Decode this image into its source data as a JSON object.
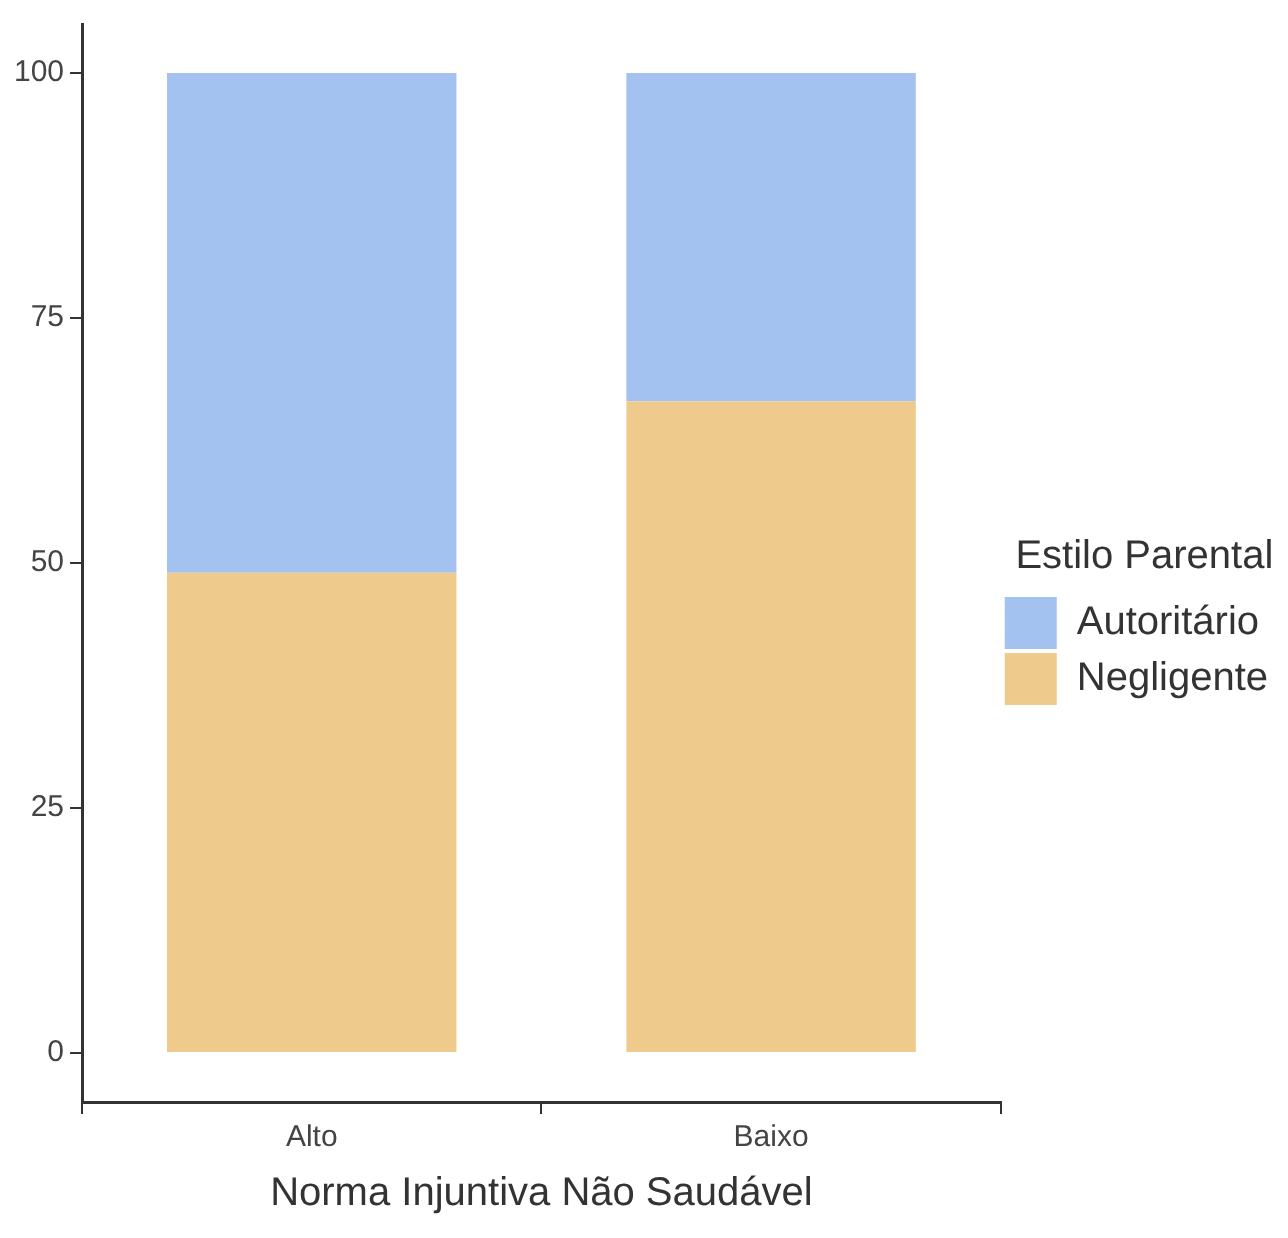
{
  "chart_data": {
    "type": "bar",
    "stacked": true,
    "xlabel": "Norma Injuntiva Não Saudável",
    "legend_title": "Estilo Parental",
    "legend": "right",
    "grid": false,
    "categories": [
      "Alto",
      "Baixo"
    ],
    "series": [
      {
        "name": "Negligente",
        "color": "#eecb8c",
        "values": [
          49,
          66.5
        ]
      },
      {
        "name": "Autoritário",
        "color": "#a4c2ef",
        "values": [
          51,
          33.5
        ]
      }
    ],
    "ylim": [
      -5,
      105
    ],
    "yticks": [
      0,
      25,
      50,
      75,
      100
    ]
  }
}
